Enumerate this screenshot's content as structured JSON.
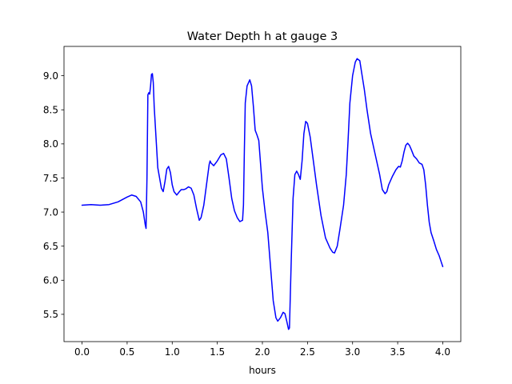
{
  "chart_data": {
    "type": "line",
    "title": "Water Depth h at gauge 3",
    "xlabel": "hours",
    "ylabel": "",
    "xlim": [
      -0.2,
      4.2
    ],
    "ylim": [
      5.1,
      9.43
    ],
    "x_ticks": [
      0.0,
      0.5,
      1.0,
      1.5,
      2.0,
      2.5,
      3.0,
      3.5,
      4.0
    ],
    "x_tick_labels": [
      "0.0",
      "0.5",
      "1.0",
      "1.5",
      "2.0",
      "2.5",
      "3.0",
      "3.5",
      "4.0"
    ],
    "y_ticks": [
      5.5,
      6.0,
      6.5,
      7.0,
      7.5,
      8.0,
      8.5,
      9.0
    ],
    "y_tick_labels": [
      "5.5",
      "6.0",
      "6.5",
      "7.0",
      "7.5",
      "8.0",
      "8.5",
      "9.0"
    ],
    "grid": false,
    "series": [
      {
        "color": "#0000ff",
        "points": [
          [
            0.0,
            7.1
          ],
          [
            0.1,
            7.11
          ],
          [
            0.2,
            7.1
          ],
          [
            0.3,
            7.11
          ],
          [
            0.4,
            7.15
          ],
          [
            0.5,
            7.22
          ],
          [
            0.55,
            7.25
          ],
          [
            0.6,
            7.23
          ],
          [
            0.65,
            7.15
          ],
          [
            0.68,
            7.0
          ],
          [
            0.7,
            6.82
          ],
          [
            0.71,
            6.76
          ],
          [
            0.72,
            7.5
          ],
          [
            0.73,
            8.72
          ],
          [
            0.74,
            8.75
          ],
          [
            0.75,
            8.73
          ],
          [
            0.76,
            8.85
          ],
          [
            0.77,
            9.02
          ],
          [
            0.78,
            9.03
          ],
          [
            0.79,
            8.9
          ],
          [
            0.8,
            8.55
          ],
          [
            0.82,
            8.1
          ],
          [
            0.84,
            7.65
          ],
          [
            0.86,
            7.5
          ],
          [
            0.88,
            7.35
          ],
          [
            0.9,
            7.3
          ],
          [
            0.92,
            7.45
          ],
          [
            0.94,
            7.63
          ],
          [
            0.96,
            7.67
          ],
          [
            0.98,
            7.58
          ],
          [
            1.0,
            7.4
          ],
          [
            1.02,
            7.3
          ],
          [
            1.05,
            7.25
          ],
          [
            1.08,
            7.3
          ],
          [
            1.1,
            7.33
          ],
          [
            1.13,
            7.33
          ],
          [
            1.15,
            7.34
          ],
          [
            1.18,
            7.37
          ],
          [
            1.21,
            7.35
          ],
          [
            1.24,
            7.25
          ],
          [
            1.27,
            7.05
          ],
          [
            1.3,
            6.88
          ],
          [
            1.32,
            6.92
          ],
          [
            1.35,
            7.1
          ],
          [
            1.38,
            7.4
          ],
          [
            1.41,
            7.7
          ],
          [
            1.42,
            7.75
          ],
          [
            1.43,
            7.72
          ],
          [
            1.46,
            7.68
          ],
          [
            1.5,
            7.75
          ],
          [
            1.54,
            7.84
          ],
          [
            1.57,
            7.86
          ],
          [
            1.6,
            7.78
          ],
          [
            1.63,
            7.5
          ],
          [
            1.66,
            7.2
          ],
          [
            1.69,
            7.02
          ],
          [
            1.72,
            6.92
          ],
          [
            1.75,
            6.86
          ],
          [
            1.78,
            6.88
          ],
          [
            1.79,
            7.1
          ],
          [
            1.8,
            7.9
          ],
          [
            1.81,
            8.6
          ],
          [
            1.83,
            8.85
          ],
          [
            1.86,
            8.94
          ],
          [
            1.88,
            8.85
          ],
          [
            1.9,
            8.55
          ],
          [
            1.92,
            8.2
          ],
          [
            1.94,
            8.13
          ],
          [
            1.96,
            8.05
          ],
          [
            1.98,
            7.7
          ],
          [
            2.0,
            7.35
          ],
          [
            2.03,
            7.0
          ],
          [
            2.06,
            6.7
          ],
          [
            2.09,
            6.2
          ],
          [
            2.12,
            5.7
          ],
          [
            2.15,
            5.45
          ],
          [
            2.17,
            5.4
          ],
          [
            2.2,
            5.45
          ],
          [
            2.23,
            5.53
          ],
          [
            2.25,
            5.51
          ],
          [
            2.27,
            5.4
          ],
          [
            2.29,
            5.28
          ],
          [
            2.3,
            5.3
          ],
          [
            2.32,
            6.3
          ],
          [
            2.34,
            7.2
          ],
          [
            2.36,
            7.55
          ],
          [
            2.38,
            7.6
          ],
          [
            2.4,
            7.55
          ],
          [
            2.42,
            7.48
          ],
          [
            2.44,
            7.75
          ],
          [
            2.46,
            8.15
          ],
          [
            2.48,
            8.33
          ],
          [
            2.5,
            8.3
          ],
          [
            2.53,
            8.1
          ],
          [
            2.56,
            7.8
          ],
          [
            2.6,
            7.4
          ],
          [
            2.65,
            6.95
          ],
          [
            2.7,
            6.62
          ],
          [
            2.75,
            6.47
          ],
          [
            2.78,
            6.41
          ],
          [
            2.8,
            6.4
          ],
          [
            2.83,
            6.5
          ],
          [
            2.86,
            6.75
          ],
          [
            2.9,
            7.1
          ],
          [
            2.93,
            7.55
          ],
          [
            2.95,
            8.05
          ],
          [
            2.97,
            8.6
          ],
          [
            3.0,
            9.0
          ],
          [
            3.03,
            9.2
          ],
          [
            3.05,
            9.25
          ],
          [
            3.08,
            9.22
          ],
          [
            3.1,
            9.05
          ],
          [
            3.13,
            8.8
          ],
          [
            3.16,
            8.5
          ],
          [
            3.2,
            8.15
          ],
          [
            3.25,
            7.85
          ],
          [
            3.3,
            7.55
          ],
          [
            3.33,
            7.33
          ],
          [
            3.36,
            7.27
          ],
          [
            3.38,
            7.3
          ],
          [
            3.4,
            7.4
          ],
          [
            3.44,
            7.52
          ],
          [
            3.48,
            7.62
          ],
          [
            3.51,
            7.67
          ],
          [
            3.53,
            7.66
          ],
          [
            3.55,
            7.75
          ],
          [
            3.57,
            7.88
          ],
          [
            3.59,
            7.98
          ],
          [
            3.61,
            8.01
          ],
          [
            3.63,
            7.98
          ],
          [
            3.65,
            7.92
          ],
          [
            3.68,
            7.82
          ],
          [
            3.71,
            7.78
          ],
          [
            3.74,
            7.72
          ],
          [
            3.77,
            7.7
          ],
          [
            3.79,
            7.62
          ],
          [
            3.81,
            7.4
          ],
          [
            3.83,
            7.1
          ],
          [
            3.85,
            6.85
          ],
          [
            3.87,
            6.7
          ],
          [
            3.9,
            6.58
          ],
          [
            3.93,
            6.45
          ],
          [
            3.96,
            6.36
          ],
          [
            3.98,
            6.28
          ],
          [
            4.0,
            6.2
          ]
        ]
      }
    ]
  }
}
